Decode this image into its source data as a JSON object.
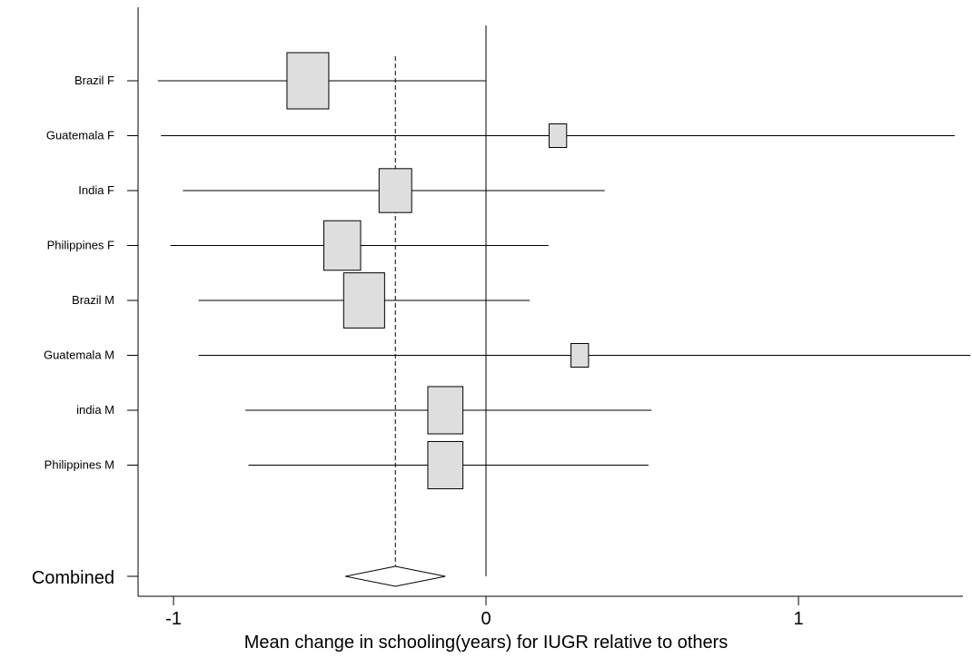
{
  "chart_data": {
    "type": "forest",
    "xlabel": "Mean change in schooling(years) for IUGR relative to others",
    "xlim": [
      -1.1,
      1.55
    ],
    "xticks": [
      -1,
      0,
      1
    ],
    "tick_labels": [
      "-1",
      "0",
      "1"
    ],
    "reference_line": 0,
    "combined_estimate": -0.29,
    "combined_ci": [
      -0.45,
      -0.13
    ],
    "box_color": "#dedede",
    "studies": [
      {
        "label": "Brazil F",
        "estimate": -0.57,
        "ci": [
          -1.05,
          0.0
        ],
        "weight": 1.0
      },
      {
        "label": "Guatemala F",
        "estimate": 0.23,
        "ci": [
          -1.04,
          1.5
        ],
        "weight": 0.42
      },
      {
        "label": "India F",
        "estimate": -0.29,
        "ci": [
          -0.97,
          0.38
        ],
        "weight": 0.78
      },
      {
        "label": "Philippines F",
        "estimate": -0.46,
        "ci": [
          -1.01,
          0.2
        ],
        "weight": 0.88
      },
      {
        "label": "Brazil M",
        "estimate": -0.39,
        "ci": [
          -0.92,
          0.14
        ],
        "weight": 0.98
      },
      {
        "label": "Guatemala M",
        "estimate": 0.3,
        "ci": [
          -0.92,
          1.55
        ],
        "weight": 0.42
      },
      {
        "label": "india M",
        "estimate": -0.13,
        "ci": [
          -0.77,
          0.53
        ],
        "weight": 0.84
      },
      {
        "label": "Philippines M",
        "estimate": -0.13,
        "ci": [
          -0.76,
          0.52
        ],
        "weight": 0.84
      }
    ],
    "combined_label": "Combined"
  }
}
